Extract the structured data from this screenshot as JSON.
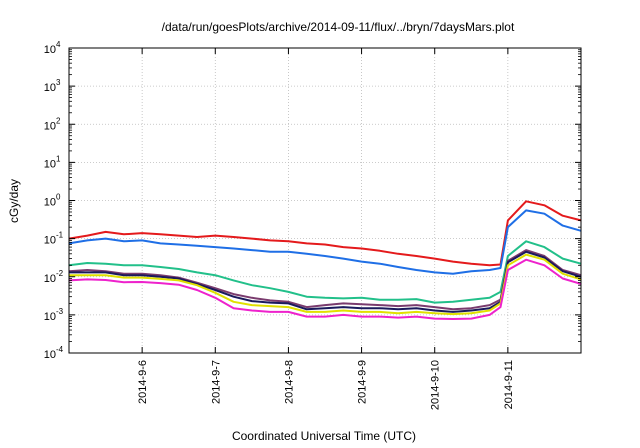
{
  "chart_data": {
    "type": "line",
    "title": "/data/run/goesPlots/archive/2014-09-11/flux/../bryn/7daysMars.plot",
    "xlabel": "Coordinated Universal Time (UTC)",
    "ylabel": "cGy/day",
    "yscale": "log",
    "ylim": [
      0.0001,
      10000
    ],
    "xlim": [
      0,
      7.0
    ],
    "grid": true,
    "legend": "none",
    "x_ticks": [
      {
        "value": 1.0,
        "label": "2014-9-6"
      },
      {
        "value": 2.0,
        "label": "2014-9-7"
      },
      {
        "value": 3.0,
        "label": "2014-9-8"
      },
      {
        "value": 4.0,
        "label": "2014-9-9"
      },
      {
        "value": 5.0,
        "label": "2014-9-10"
      },
      {
        "value": 6.0,
        "label": "2014-9-11"
      }
    ],
    "y_ticks": [
      {
        "value": 0.0001,
        "base": "10",
        "exp": "-4"
      },
      {
        "value": 0.001,
        "base": "10",
        "exp": "-3"
      },
      {
        "value": 0.01,
        "base": "10",
        "exp": "-2"
      },
      {
        "value": 0.1,
        "base": "10",
        "exp": "-1"
      },
      {
        "value": 1,
        "base": "10",
        "exp": "0"
      },
      {
        "value": 10,
        "base": "10",
        "exp": "1"
      },
      {
        "value": 100,
        "base": "10",
        "exp": "2"
      },
      {
        "value": 1000,
        "base": "10",
        "exp": "3"
      },
      {
        "value": 10000,
        "base": "10",
        "exp": "4"
      }
    ],
    "x": [
      0.0,
      0.25,
      0.5,
      0.75,
      1.0,
      1.25,
      1.5,
      1.75,
      2.0,
      2.25,
      2.5,
      2.75,
      3.0,
      3.25,
      3.5,
      3.75,
      4.0,
      4.25,
      4.5,
      4.75,
      5.0,
      5.25,
      5.5,
      5.75,
      5.9,
      6.0,
      6.25,
      6.5,
      6.75,
      7.0
    ],
    "series": [
      {
        "color": "#e41a1c",
        "values": [
          0.1,
          0.12,
          0.15,
          0.13,
          0.14,
          0.13,
          0.12,
          0.11,
          0.12,
          0.11,
          0.1,
          0.09,
          0.085,
          0.075,
          0.07,
          0.06,
          0.055,
          0.048,
          0.04,
          0.035,
          0.03,
          0.025,
          0.022,
          0.02,
          0.021,
          0.3,
          0.95,
          0.75,
          0.4,
          0.3
        ]
      },
      {
        "color": "#1f6fe6",
        "values": [
          0.075,
          0.09,
          0.1,
          0.085,
          0.09,
          0.075,
          0.07,
          0.065,
          0.06,
          0.055,
          0.05,
          0.045,
          0.045,
          0.04,
          0.035,
          0.03,
          0.025,
          0.022,
          0.018,
          0.015,
          0.013,
          0.012,
          0.014,
          0.015,
          0.017,
          0.2,
          0.55,
          0.45,
          0.22,
          0.16
        ]
      },
      {
        "color": "#22c08a",
        "values": [
          0.02,
          0.023,
          0.022,
          0.02,
          0.02,
          0.018,
          0.016,
          0.013,
          0.011,
          0.008,
          0.006,
          0.005,
          0.004,
          0.003,
          0.0028,
          0.0027,
          0.0028,
          0.0025,
          0.0025,
          0.0026,
          0.0021,
          0.0022,
          0.0025,
          0.0028,
          0.004,
          0.035,
          0.085,
          0.06,
          0.03,
          0.022
        ]
      },
      {
        "color": "#7a3b6e",
        "values": [
          0.014,
          0.015,
          0.014,
          0.012,
          0.012,
          0.011,
          0.0095,
          0.007,
          0.005,
          0.0035,
          0.0028,
          0.0024,
          0.0022,
          0.0016,
          0.0018,
          0.002,
          0.0019,
          0.0018,
          0.0017,
          0.0018,
          0.0016,
          0.0014,
          0.0015,
          0.0018,
          0.0025,
          0.026,
          0.05,
          0.035,
          0.015,
          0.011
        ]
      },
      {
        "color": "#1a1a5c",
        "values": [
          0.013,
          0.013,
          0.013,
          0.011,
          0.011,
          0.01,
          0.009,
          0.0065,
          0.0045,
          0.003,
          0.0023,
          0.0021,
          0.002,
          0.0014,
          0.0015,
          0.0016,
          0.0015,
          0.0015,
          0.0014,
          0.0015,
          0.0013,
          0.0012,
          0.0013,
          0.0015,
          0.0022,
          0.024,
          0.045,
          0.032,
          0.014,
          0.01
        ]
      },
      {
        "color": "#e0e000",
        "values": [
          0.011,
          0.011,
          0.011,
          0.0095,
          0.0095,
          0.0088,
          0.008,
          0.006,
          0.0038,
          0.0022,
          0.0018,
          0.0017,
          0.0016,
          0.0012,
          0.0012,
          0.0013,
          0.0012,
          0.0012,
          0.0011,
          0.0012,
          0.0011,
          0.00105,
          0.0011,
          0.0013,
          0.002,
          0.02,
          0.038,
          0.028,
          0.012,
          0.0085
        ]
      },
      {
        "color": "#ee22cc",
        "values": [
          0.008,
          0.0085,
          0.0082,
          0.0072,
          0.0073,
          0.0068,
          0.0062,
          0.0045,
          0.0028,
          0.0015,
          0.0013,
          0.0012,
          0.0012,
          0.0009,
          0.0009,
          0.001,
          0.0009,
          0.0009,
          0.00085,
          0.0009,
          0.0008,
          0.00078,
          0.0008,
          0.001,
          0.0016,
          0.015,
          0.028,
          0.02,
          0.009,
          0.0065
        ]
      }
    ]
  }
}
